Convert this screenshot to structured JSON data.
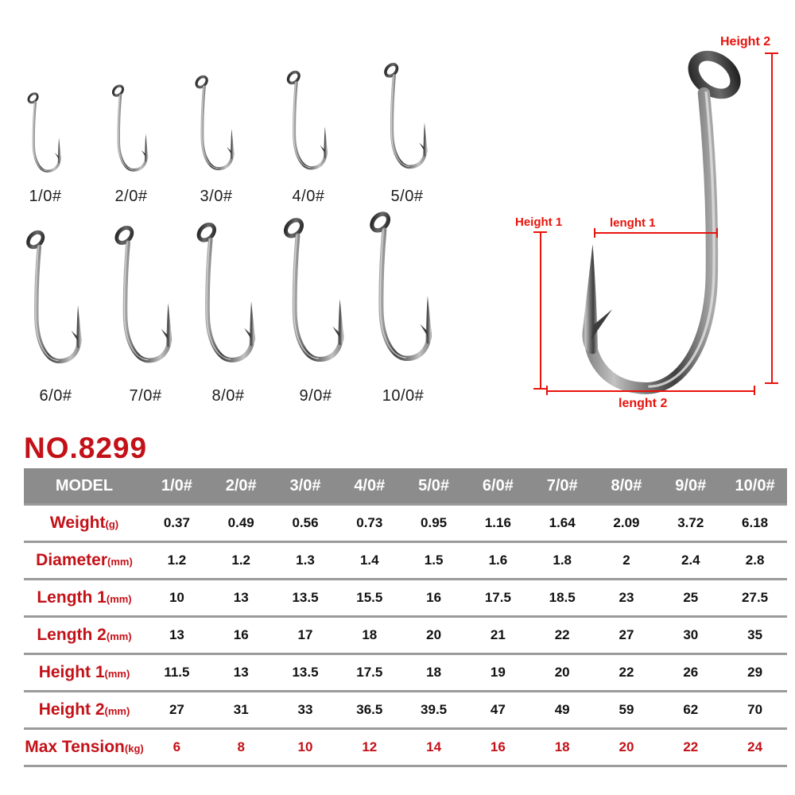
{
  "product": {
    "model_no": "NO.8299"
  },
  "hooks": {
    "row1": [
      "1/0#",
      "2/0#",
      "3/0#",
      "4/0#",
      "5/0#"
    ],
    "row2": [
      "6/0#",
      "7/0#",
      "8/0#",
      "9/0#",
      "10/0#"
    ]
  },
  "diagram": {
    "height1_label": "Height 1",
    "height2_label": "Height 2",
    "length1_label": "lenght 1",
    "length2_label": "lenght 2"
  },
  "table": {
    "header": [
      "MODEL",
      "1/0#",
      "2/0#",
      "3/0#",
      "4/0#",
      "5/0#",
      "6/0#",
      "7/0#",
      "8/0#",
      "9/0#",
      "10/0#"
    ],
    "rows": [
      {
        "label": "Weight",
        "unit": "(g)",
        "values_red": false,
        "values": [
          "0.37",
          "0.49",
          "0.56",
          "0.73",
          "0.95",
          "1.16",
          "1.64",
          "2.09",
          "3.72",
          "6.18"
        ]
      },
      {
        "label": "Diameter",
        "unit": "(mm)",
        "values_red": false,
        "values": [
          "1.2",
          "1.2",
          "1.3",
          "1.4",
          "1.5",
          "1.6",
          "1.8",
          "2",
          "2.4",
          "2.8"
        ]
      },
      {
        "label": "Length 1",
        "unit": "(mm)",
        "values_red": false,
        "values": [
          "10",
          "13",
          "13.5",
          "15.5",
          "16",
          "17.5",
          "18.5",
          "23",
          "25",
          "27.5"
        ]
      },
      {
        "label": "Length 2",
        "unit": "(mm)",
        "values_red": false,
        "values": [
          "13",
          "16",
          "17",
          "18",
          "20",
          "21",
          "22",
          "27",
          "30",
          "35"
        ]
      },
      {
        "label": "Height 1",
        "unit": "(mm)",
        "values_red": false,
        "values": [
          "11.5",
          "13",
          "13.5",
          "17.5",
          "18",
          "19",
          "20",
          "22",
          "26",
          "29"
        ]
      },
      {
        "label": "Height 2",
        "unit": "(mm)",
        "values_red": false,
        "values": [
          "27",
          "31",
          "33",
          "36.5",
          "39.5",
          "47",
          "49",
          "59",
          "62",
          "70"
        ]
      },
      {
        "label": "Max Tension",
        "unit": "(kg)",
        "values_red": true,
        "values": [
          "6",
          "8",
          "10",
          "12",
          "14",
          "16",
          "18",
          "20",
          "22",
          "24"
        ]
      }
    ]
  },
  "colors": {
    "brand_red": "#c31118",
    "annotation_red": "#e8130c",
    "table_header_bg": "#8c8c8c",
    "table_header_text": "#ffffff",
    "value_text": "#111111",
    "separator_gray": "#9b9b9b"
  }
}
